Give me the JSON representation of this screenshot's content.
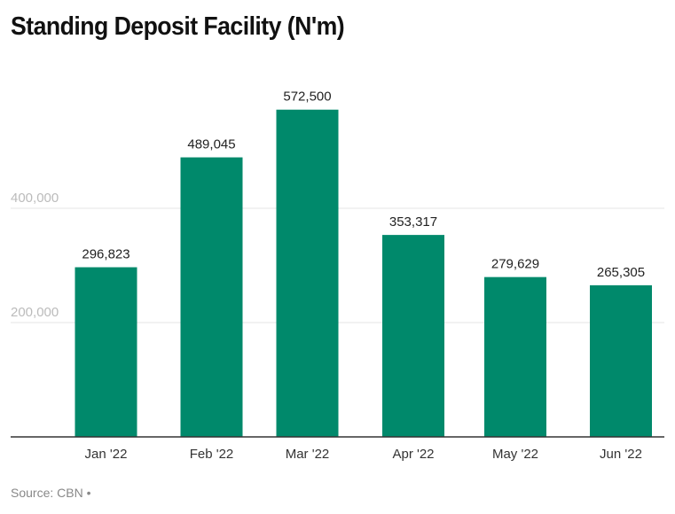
{
  "chart_data": {
    "type": "bar",
    "title": "Standing Deposit Facility (N'm)",
    "categories": [
      "Jan '22",
      "Feb '22",
      "Mar '22",
      "Apr '22",
      "May '22",
      "Jun '22"
    ],
    "values": [
      296823,
      489045,
      572500,
      353317,
      279629,
      265305
    ],
    "value_labels": [
      "296,823",
      "489,045",
      "572,500",
      "353,317",
      "279,629",
      "265,305"
    ],
    "yticks": [
      200000,
      400000
    ],
    "ytick_labels": [
      "200,000",
      "400,000"
    ],
    "ylim": [
      0,
      600000
    ],
    "xlabel": "",
    "ylabel": "",
    "grid": true,
    "bar_color": "#00896b"
  },
  "footer": {
    "source": "Source: CBN •"
  }
}
